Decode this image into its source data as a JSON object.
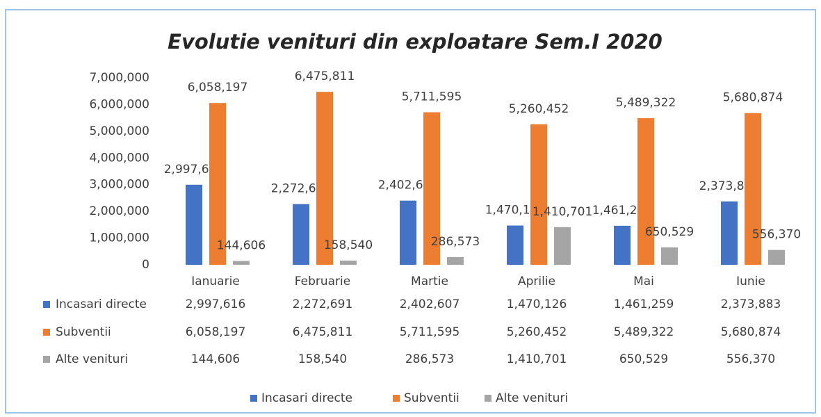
{
  "chart_data": {
    "type": "bar",
    "title": "Evolutie venituri din exploatare Sem.I 2020",
    "categories": [
      "Ianuarie",
      "Februarie",
      "Martie",
      "Aprilie",
      "Mai",
      "Iunie"
    ],
    "series": [
      {
        "name": "Incasari directe",
        "color": "#4472c4",
        "values": [
          2997616,
          2272691,
          2402607,
          1470126,
          1461259,
          2373883
        ],
        "value_labels": [
          "2,997,616",
          "2,272,691",
          "2,402,607",
          "1,470,126",
          "1,461,259",
          "2,373,883"
        ]
      },
      {
        "name": "Subventii",
        "color": "#ed7d31",
        "values": [
          6058197,
          6475811,
          5711595,
          5260452,
          5489322,
          5680874
        ],
        "value_labels": [
          "6,058,197",
          "6,475,811",
          "5,711,595",
          "5,260,452",
          "5,489,322",
          "5,680,874"
        ]
      },
      {
        "name": "Alte venituri",
        "color": "#a5a5a5",
        "values": [
          144606,
          158540,
          286573,
          1410701,
          650529,
          556370
        ],
        "value_labels": [
          "144,606",
          "158,540",
          "286,573",
          "1,410,701",
          "650,529",
          "556,370"
        ]
      }
    ],
    "ylim": [
      0,
      7000000
    ],
    "yticks": [
      0,
      {
        "value": 1000000,
        "label": "1,000,000"
      },
      {
        "value": 2000000,
        "label": "2,000,000"
      },
      {
        "value": 3000000,
        "label": "3,000,000"
      },
      {
        "value": 4000000,
        "label": "4,000,000"
      },
      {
        "value": 5000000,
        "label": "5,000,000"
      },
      {
        "value": 6000000,
        "label": "6,000,000"
      },
      {
        "value": 7000000,
        "label": "7,000,000"
      }
    ],
    "legend": "bottom",
    "data_table": true
  }
}
